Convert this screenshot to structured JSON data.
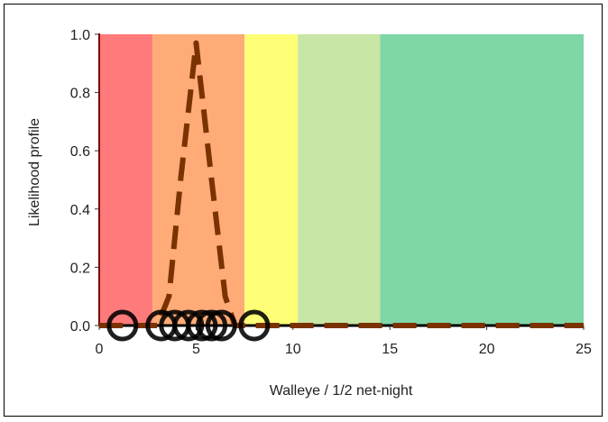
{
  "chart_data": {
    "type": "area",
    "xlabel": "Walleye / 1/2 net-night",
    "ylabel": "Likelihood profile",
    "xlim": [
      0,
      25
    ],
    "ylim": [
      0,
      1.0
    ],
    "x_ticks": [
      0,
      5,
      10,
      15,
      20,
      25
    ],
    "y_ticks": [
      "0.0",
      "0.2",
      "0.4",
      "0.6",
      "0.8",
      "1.0"
    ],
    "grid": false,
    "bands": [
      {
        "from": 0,
        "to": 2.75,
        "color": "#ff7a7a"
      },
      {
        "from": 2.75,
        "to": 7.5,
        "color": "#ffab77"
      },
      {
        "from": 7.5,
        "to": 10.25,
        "color": "#ffff77"
      },
      {
        "from": 10.25,
        "to": 14.5,
        "color": "#c8e6a6"
      },
      {
        "from": 14.5,
        "to": 25,
        "color": "#7fd6a6"
      }
    ],
    "series": [
      {
        "style": "dashed",
        "color": "#7a3300",
        "x": [
          0,
          1,
          2,
          3,
          3.6,
          4.2,
          5,
          5.8,
          6.5,
          7,
          7.5,
          10,
          15,
          20,
          25
        ],
        "values": [
          0,
          0,
          0,
          0,
          0.1,
          0.5,
          0.97,
          0.5,
          0.1,
          0,
          0,
          0,
          0,
          0,
          0
        ]
      },
      {
        "style": "circles",
        "color": "#000000",
        "x": [
          1.2,
          3.2,
          3.9,
          4.6,
          5.3,
          5.8,
          6.3,
          8.0
        ],
        "values": [
          0,
          0,
          0,
          0,
          0,
          0,
          0,
          0
        ]
      }
    ]
  }
}
